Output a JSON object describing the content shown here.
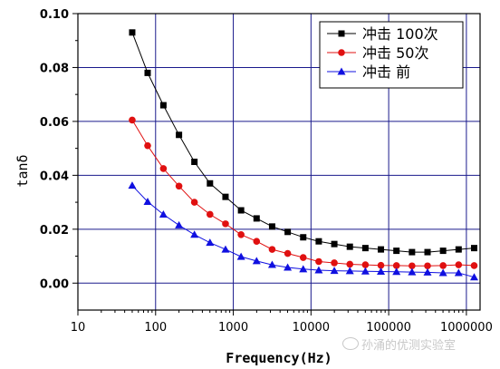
{
  "chart_data": {
    "type": "line",
    "xlabel": "Frequency(Hz)",
    "ylabel": "tanδ",
    "xscale": "log",
    "xlim": [
      10,
      1500000
    ],
    "ylim": [
      -0.01,
      0.1
    ],
    "xticks": [
      10,
      100,
      1000,
      10000,
      100000,
      1000000
    ],
    "xtick_labels": [
      "10",
      "100",
      "1000",
      "10000",
      "100000",
      "1000000"
    ],
    "yticks": [
      0.0,
      0.02,
      0.04,
      0.06,
      0.08,
      0.1
    ],
    "ytick_labels": [
      "0.00",
      "0.02",
      "0.04",
      "0.06",
      "0.08",
      "0.10"
    ],
    "grid": true,
    "grid_color": "#1a1a8c",
    "legend_position": "top-right",
    "x": [
      50,
      79,
      126,
      200,
      316,
      501,
      794,
      1259,
      1995,
      3162,
      5012,
      7943,
      12589,
      19953,
      31623,
      50119,
      79433,
      125893,
      199526,
      316228,
      501187,
      794328,
      1258925
    ],
    "series": [
      {
        "name": "冲击 100次",
        "color": "#000000",
        "marker": "square",
        "values": [
          0.093,
          0.078,
          0.066,
          0.055,
          0.045,
          0.037,
          0.032,
          0.027,
          0.024,
          0.021,
          0.019,
          0.017,
          0.0155,
          0.0145,
          0.0135,
          0.013,
          0.0125,
          0.012,
          0.0115,
          0.0115,
          0.012,
          0.0125,
          0.013
        ]
      },
      {
        "name": "冲击 50次",
        "color": "#e01010",
        "marker": "circle",
        "values": [
          0.0605,
          0.051,
          0.0425,
          0.036,
          0.03,
          0.0255,
          0.022,
          0.018,
          0.0155,
          0.0125,
          0.011,
          0.0095,
          0.008,
          0.0075,
          0.007,
          0.0068,
          0.0066,
          0.0065,
          0.0064,
          0.0064,
          0.0065,
          0.0068,
          0.0065
        ]
      },
      {
        "name": "冲击 前",
        "color": "#1010e0",
        "marker": "triangle",
        "values": [
          0.0362,
          0.0302,
          0.0255,
          0.0215,
          0.018,
          0.015,
          0.0125,
          0.0098,
          0.0082,
          0.0068,
          0.0058,
          0.0052,
          0.0048,
          0.0046,
          0.0045,
          0.0044,
          0.0043,
          0.0042,
          0.0041,
          0.004,
          0.0038,
          0.0038,
          0.0022
        ]
      }
    ]
  },
  "watermark": "孙涌的优测实验室"
}
